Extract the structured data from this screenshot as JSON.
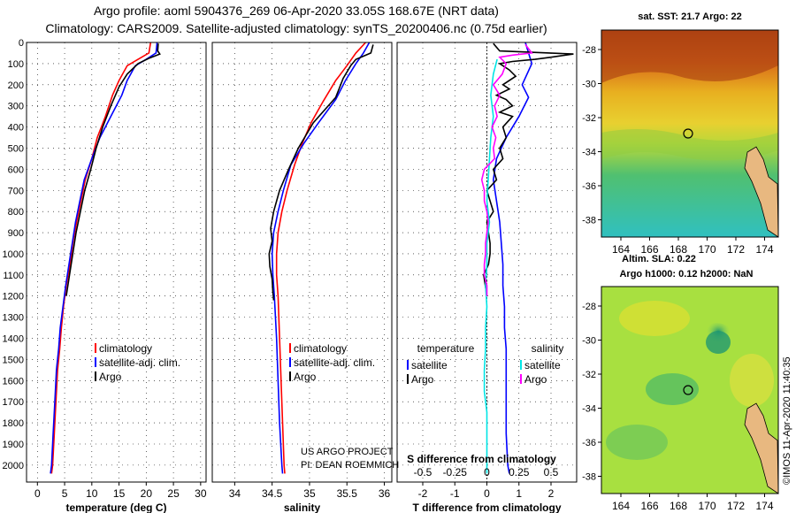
{
  "header": {
    "line1": "Argo profile: aoml 5904376_269 06-Apr-2020 33.05S 168.67E (NRT data)",
    "line2": "Climatology: CARS2009. Satellite-adjusted climatology: synTS_20200406.nc (0.75d earlier)"
  },
  "colors": {
    "climatology": "#ff0000",
    "satellite": "#0000ff",
    "argo": "#000000",
    "sat_salinity": "#00e5e5",
    "argo_salinity": "#ff00ff"
  },
  "chart_data": [
    {
      "type": "line",
      "name": "temperature-panel",
      "xlabel": "temperature (deg C)",
      "xlim": [
        -2,
        31
      ],
      "xticks": [
        "0",
        "5",
        "10",
        "15",
        "20",
        "25",
        "30"
      ],
      "ylim": [
        0,
        2080
      ],
      "yticks": [
        "0",
        "100",
        "200",
        "300",
        "400",
        "500",
        "600",
        "700",
        "800",
        "900",
        "1000",
        "1100",
        "1200",
        "1300",
        "1400",
        "1500",
        "1600",
        "1700",
        "1800",
        "1900",
        "2000"
      ],
      "legend": [
        "climatology",
        "satellite-adj. clim.",
        "Argo"
      ],
      "series": [
        {
          "name": "climatology",
          "color": "#ff0000",
          "points": [
            [
              20.8,
              0
            ],
            [
              20.5,
              50
            ],
            [
              18.5,
              80
            ],
            [
              16.5,
              110
            ],
            [
              15,
              180
            ],
            [
              13.8,
              250
            ],
            [
              12.5,
              350
            ],
            [
              11,
              450
            ],
            [
              10,
              550
            ],
            [
              8.8,
              650
            ],
            [
              8,
              750
            ],
            [
              7.2,
              850
            ],
            [
              6.5,
              950
            ],
            [
              6,
              1050
            ],
            [
              5.3,
              1150
            ],
            [
              4.8,
              1250
            ],
            [
              4.4,
              1350
            ],
            [
              4.1,
              1450
            ],
            [
              3.7,
              1550
            ],
            [
              3.4,
              1700
            ],
            [
              3.1,
              1850
            ],
            [
              2.8,
              2000
            ],
            [
              2.6,
              2040
            ]
          ]
        },
        {
          "name": "satellite-adj. clim.",
          "color": "#0000ff",
          "points": [
            [
              22,
              0
            ],
            [
              21.8,
              50
            ],
            [
              20,
              80
            ],
            [
              18,
              110
            ],
            [
              16.5,
              180
            ],
            [
              15.5,
              250
            ],
            [
              13.5,
              350
            ],
            [
              11.5,
              450
            ],
            [
              10,
              550
            ],
            [
              8.6,
              650
            ],
            [
              7.8,
              750
            ],
            [
              7,
              850
            ],
            [
              6.4,
              950
            ],
            [
              5.8,
              1050
            ],
            [
              5.2,
              1150
            ],
            [
              4.7,
              1250
            ],
            [
              4.2,
              1350
            ],
            [
              3.9,
              1450
            ],
            [
              3.5,
              1550
            ],
            [
              3.2,
              1700
            ],
            [
              2.9,
              1850
            ],
            [
              2.6,
              2000
            ],
            [
              2.4,
              2040
            ]
          ]
        },
        {
          "name": "Argo",
          "color": "#000000",
          "points": [
            [
              22.2,
              5
            ],
            [
              22.1,
              40
            ],
            [
              22.5,
              55
            ],
            [
              20.5,
              75
            ],
            [
              18.5,
              100
            ],
            [
              16.5,
              150
            ],
            [
              15,
              210
            ],
            [
              13.5,
              300
            ],
            [
              12,
              400
            ],
            [
              10.8,
              500
            ],
            [
              9.8,
              600
            ],
            [
              8.7,
              700
            ],
            [
              7.9,
              800
            ],
            [
              7.1,
              900
            ],
            [
              6.5,
              1000
            ],
            [
              5.9,
              1100
            ],
            [
              5.3,
              1200
            ]
          ]
        }
      ]
    },
    {
      "type": "line",
      "name": "salinity-panel",
      "xlabel": "salinity",
      "xlim": [
        33.7,
        36.1
      ],
      "xticks": [
        "34",
        "34.5",
        "35",
        "35.5",
        "36"
      ],
      "ylim": [
        0,
        2080
      ],
      "legend": [
        "climatology",
        "satellite-adj. clim.",
        "Argo"
      ],
      "footnote": [
        "US ARGO PROJECT",
        "PI: DEAN ROEMMICH"
      ],
      "series": [
        {
          "name": "climatology",
          "color": "#ff0000",
          "points": [
            [
              35.75,
              0
            ],
            [
              35.62,
              50
            ],
            [
              35.5,
              110
            ],
            [
              35.35,
              180
            ],
            [
              35.18,
              280
            ],
            [
              35.02,
              380
            ],
            [
              34.9,
              480
            ],
            [
              34.8,
              580
            ],
            [
              34.7,
              700
            ],
            [
              34.63,
              800
            ],
            [
              34.58,
              900
            ],
            [
              34.56,
              1000
            ],
            [
              34.56,
              1100
            ],
            [
              34.58,
              1200
            ],
            [
              34.6,
              1400
            ],
            [
              34.62,
              1600
            ],
            [
              34.64,
              1800
            ],
            [
              34.66,
              2000
            ],
            [
              34.67,
              2040
            ]
          ]
        },
        {
          "name": "satellite-adj. clim.",
          "color": "#0000ff",
          "points": [
            [
              35.8,
              0
            ],
            [
              35.72,
              50
            ],
            [
              35.62,
              100
            ],
            [
              35.48,
              180
            ],
            [
              35.35,
              270
            ],
            [
              35.12,
              380
            ],
            [
              34.92,
              480
            ],
            [
              34.75,
              580
            ],
            [
              34.65,
              700
            ],
            [
              34.58,
              800
            ],
            [
              34.52,
              900
            ],
            [
              34.5,
              1000
            ],
            [
              34.51,
              1100
            ],
            [
              34.53,
              1200
            ],
            [
              34.56,
              1400
            ],
            [
              34.58,
              1600
            ],
            [
              34.6,
              1800
            ],
            [
              34.63,
              2000
            ],
            [
              34.64,
              2040
            ]
          ]
        },
        {
          "name": "Argo",
          "color": "#000000",
          "points": [
            [
              35.85,
              10
            ],
            [
              35.82,
              50
            ],
            [
              35.62,
              80
            ],
            [
              35.55,
              110
            ],
            [
              35.45,
              170
            ],
            [
              35.35,
              260
            ],
            [
              35.05,
              380
            ],
            [
              34.85,
              500
            ],
            [
              34.72,
              600
            ],
            [
              34.6,
              700
            ],
            [
              34.52,
              800
            ],
            [
              34.48,
              880
            ],
            [
              34.5,
              940
            ],
            [
              34.46,
              1000
            ],
            [
              34.47,
              1060
            ],
            [
              34.5,
              1120
            ],
            [
              34.51,
              1180
            ],
            [
              34.52,
              1220
            ]
          ]
        }
      ]
    },
    {
      "type": "line",
      "name": "difference-panel",
      "xlabel": "T difference from climatology",
      "xlim": [
        -2.8,
        2.8
      ],
      "xticks": [
        "-2",
        "-1",
        "0",
        "1",
        "2"
      ],
      "top_xlabel": "S difference from climatology",
      "top_xticks": [
        "-0.5",
        "-0.25",
        "0",
        "0.25",
        "0.5"
      ],
      "ylim": [
        0,
        2080
      ],
      "legend_left_title": "temperature",
      "legend_right_title": "salinity",
      "legend": [
        "satellite",
        "Argo",
        "satellite",
        "Argo"
      ],
      "series": [
        {
          "name": "T satellite",
          "color": "#0000ff",
          "points": [
            [
              1.2,
              0
            ],
            [
              1.3,
              50
            ],
            [
              1.4,
              100
            ],
            [
              1.1,
              200
            ],
            [
              1.3,
              260
            ],
            [
              1,
              350
            ],
            [
              0.6,
              450
            ],
            [
              0.3,
              550
            ],
            [
              0.2,
              650
            ],
            [
              0.3,
              750
            ],
            [
              0.4,
              850
            ],
            [
              0.45,
              950
            ],
            [
              0.5,
              1050
            ],
            [
              0.5,
              1150
            ],
            [
              0.55,
              1250
            ],
            [
              0.55,
              1350
            ],
            [
              0.6,
              1450
            ],
            [
              0.6,
              1550
            ],
            [
              0.6,
              1700
            ],
            [
              0.6,
              1850
            ],
            [
              0.65,
              2000
            ],
            [
              0.7,
              2040
            ]
          ]
        },
        {
          "name": "T Argo",
          "color": "#000000",
          "points": [
            [
              0.2,
              5
            ],
            [
              0.4,
              40
            ],
            [
              2.7,
              55
            ],
            [
              2,
              70
            ],
            [
              1.5,
              80
            ],
            [
              0.8,
              90
            ],
            [
              0.4,
              100
            ],
            [
              0.7,
              130
            ],
            [
              0.9,
              160
            ],
            [
              0.5,
              200
            ],
            [
              0.7,
              220
            ],
            [
              0.3,
              250
            ],
            [
              0.6,
              270
            ],
            [
              0.8,
              300
            ],
            [
              0.4,
              330
            ],
            [
              0.8,
              350
            ],
            [
              0.5,
              400
            ],
            [
              0.6,
              450
            ],
            [
              0.4,
              500
            ],
            [
              0.5,
              550
            ],
            [
              0.2,
              600
            ],
            [
              0.3,
              650
            ],
            [
              0,
              700
            ],
            [
              0.1,
              750
            ],
            [
              0.2,
              800
            ],
            [
              0,
              850
            ],
            [
              0.05,
              900
            ],
            [
              0.1,
              950
            ],
            [
              0.1,
              1000
            ],
            [
              0.05,
              1050
            ],
            [
              -0.1,
              1100
            ],
            [
              -0.05,
              1150
            ],
            [
              0,
              1200
            ]
          ]
        },
        {
          "name": "S satellite",
          "color": "#00e5e5",
          "points": [
            [
              0.08,
              80
            ],
            [
              0.05,
              150
            ],
            [
              0.03,
              250
            ],
            [
              0.05,
              350
            ],
            [
              0.03,
              450
            ],
            [
              0.02,
              550
            ],
            [
              0.01,
              650
            ],
            [
              0,
              750
            ],
            [
              0.02,
              850
            ],
            [
              0,
              950
            ],
            [
              0,
              1050
            ],
            [
              -0.01,
              1150
            ],
            [
              0,
              1250
            ],
            [
              -0.01,
              1350
            ],
            [
              -0.01,
              1450
            ],
            [
              -0.02,
              1550
            ],
            [
              -0.02,
              1650
            ],
            [
              0,
              1750
            ],
            [
              0,
              1850
            ],
            [
              0,
              1950
            ],
            [
              0,
              2040
            ]
          ]
        },
        {
          "name": "S Argo",
          "color": "#ff00ff",
          "points": [
            [
              0.3,
              10
            ],
            [
              0.35,
              50
            ],
            [
              0.2,
              60
            ],
            [
              0.1,
              70
            ],
            [
              0.15,
              100
            ],
            [
              0.12,
              150
            ],
            [
              0.05,
              200
            ],
            [
              0.1,
              250
            ],
            [
              0.06,
              300
            ],
            [
              0.08,
              350
            ],
            [
              0.04,
              400
            ],
            [
              0.07,
              450
            ],
            [
              0.05,
              500
            ],
            [
              0.06,
              550
            ],
            [
              -0.02,
              600
            ],
            [
              -0.04,
              650
            ],
            [
              -0.02,
              700
            ],
            [
              -0.02,
              750
            ],
            [
              0,
              800
            ],
            [
              0.01,
              850
            ],
            [
              0,
              900
            ],
            [
              -0.01,
              950
            ],
            [
              -0.01,
              1000
            ],
            [
              -0.02,
              1050
            ],
            [
              -0.02,
              1100
            ],
            [
              0,
              1150
            ],
            [
              0,
              1200
            ]
          ]
        }
      ]
    }
  ],
  "maps": {
    "sst": {
      "title": "sat. SST: 21.7 Argo: 22",
      "yticks": [
        "-28",
        "-30",
        "-32",
        "-34",
        "-36",
        "-38"
      ],
      "xticks": [
        "164",
        "166",
        "168",
        "170",
        "172",
        "174"
      ]
    },
    "sla": {
      "title1": "Altim. SLA: 0.22",
      "title2": "Argo h1000: 0.12 h2000: NaN",
      "yticks": [
        "-28",
        "-30",
        "-32",
        "-34",
        "-36",
        "-38"
      ],
      "xticks": [
        "164",
        "166",
        "168",
        "170",
        "172",
        "174"
      ]
    }
  },
  "credit": "©IMOS 11-Apr-2020 11:40:35"
}
